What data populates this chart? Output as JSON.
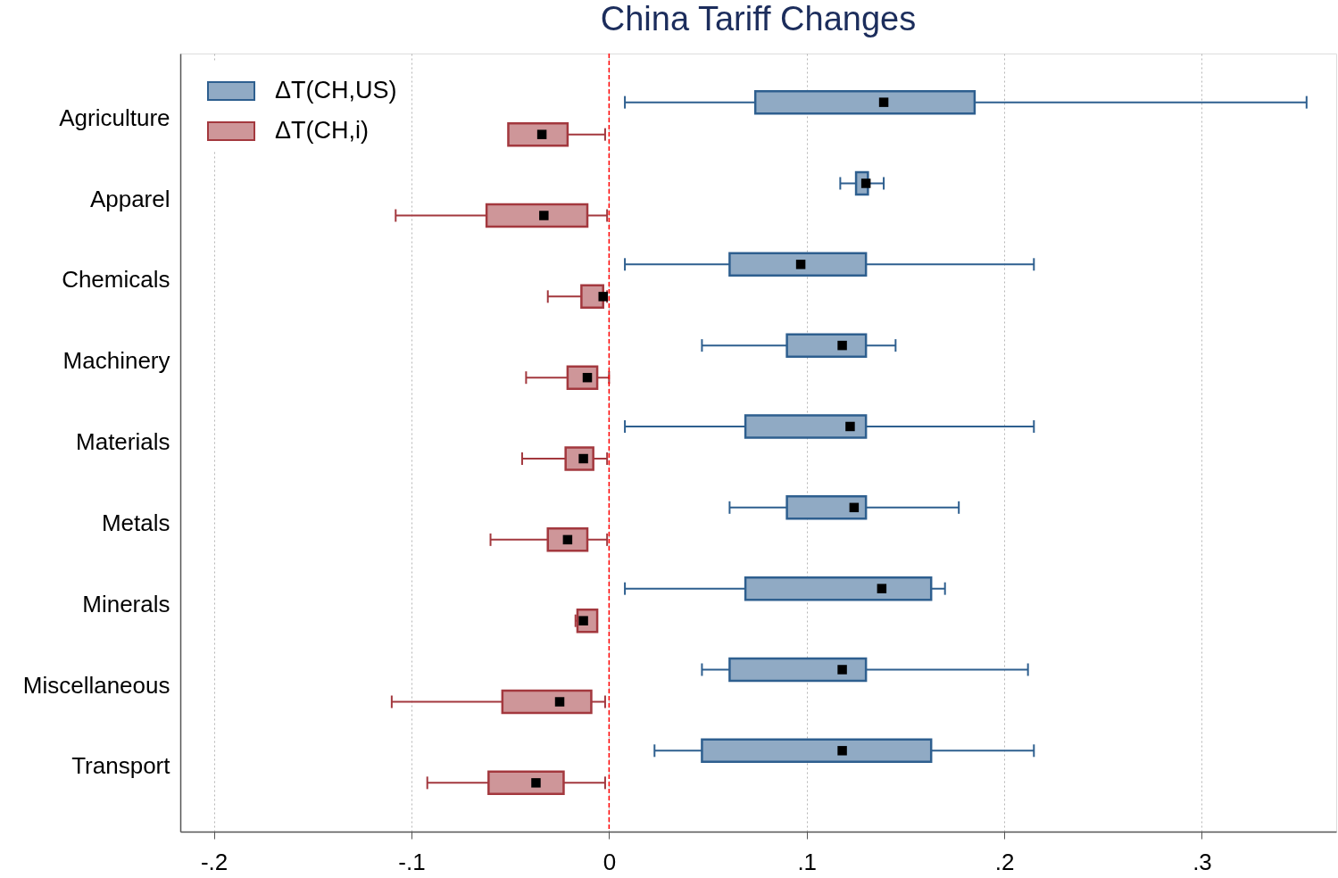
{
  "chart_data": {
    "type": "box",
    "title": "China Tariff Changes",
    "orientation": "horizontal",
    "categories": [
      "Agriculture",
      "Apparel",
      "Chemicals",
      "Machinery",
      "Materials",
      "Metals",
      "Minerals",
      "Miscellaneous",
      "Transport"
    ],
    "series": [
      {
        "name": "ΔT(CH,US)",
        "color": "#2e5f8f",
        "boxes": [
          {
            "low": 0.008,
            "q1": 0.074,
            "median": 0.139,
            "q3": 0.185,
            "high": 0.353
          },
          {
            "low": 0.117,
            "q1": 0.125,
            "median": 0.13,
            "q3": 0.131,
            "high": 0.139
          },
          {
            "low": 0.008,
            "q1": 0.061,
            "median": 0.097,
            "q3": 0.13,
            "high": 0.215
          },
          {
            "low": 0.047,
            "q1": 0.09,
            "median": 0.118,
            "q3": 0.13,
            "high": 0.145
          },
          {
            "low": 0.008,
            "q1": 0.069,
            "median": 0.122,
            "q3": 0.13,
            "high": 0.215
          },
          {
            "low": 0.061,
            "q1": 0.09,
            "median": 0.124,
            "q3": 0.13,
            "high": 0.177
          },
          {
            "low": 0.008,
            "q1": 0.069,
            "median": 0.138,
            "q3": 0.163,
            "high": 0.17
          },
          {
            "low": 0.047,
            "q1": 0.061,
            "median": 0.118,
            "q3": 0.13,
            "high": 0.212
          },
          {
            "low": 0.023,
            "q1": 0.047,
            "median": 0.118,
            "q3": 0.163,
            "high": 0.215
          }
        ]
      },
      {
        "name": "ΔT(CH,i)",
        "color": "#a3383e",
        "boxes": [
          {
            "low": -0.051,
            "q1": -0.051,
            "median": -0.034,
            "q3": -0.021,
            "high": -0.002
          },
          {
            "low": -0.108,
            "q1": -0.062,
            "median": -0.033,
            "q3": -0.011,
            "high": -0.001
          },
          {
            "low": -0.031,
            "q1": -0.014,
            "median": -0.003,
            "q3": -0.003,
            "high": -0.001
          },
          {
            "low": -0.042,
            "q1": -0.021,
            "median": -0.011,
            "q3": -0.006,
            "high": 0.0
          },
          {
            "low": -0.044,
            "q1": -0.022,
            "median": -0.013,
            "q3": -0.008,
            "high": -0.001
          },
          {
            "low": -0.06,
            "q1": -0.031,
            "median": -0.021,
            "q3": -0.011,
            "high": -0.001
          },
          {
            "low": -0.017,
            "q1": -0.016,
            "median": -0.013,
            "q3": -0.006,
            "high": -0.006
          },
          {
            "low": -0.11,
            "q1": -0.054,
            "median": -0.025,
            "q3": -0.009,
            "high": -0.002
          },
          {
            "low": -0.092,
            "q1": -0.061,
            "median": -0.037,
            "q3": -0.023,
            "high": -0.002
          }
        ]
      }
    ],
    "xlim": [
      -0.217,
      0.368
    ],
    "xticks": [
      {
        "value": -0.2,
        "label": "-.2"
      },
      {
        "value": -0.1,
        "label": "-.1"
      },
      0,
      {
        "value": 0.1,
        "label": ".1"
      },
      {
        "value": 0.2,
        "label": ".2"
      },
      {
        "value": 0.3,
        "label": ".3"
      }
    ],
    "grid": "x",
    "legend": "top left",
    "marker": "square",
    "ref_lines": [
      {
        "axis": "x",
        "value": 0,
        "color": "#ff0000",
        "line_style": "dashed"
      }
    ]
  }
}
